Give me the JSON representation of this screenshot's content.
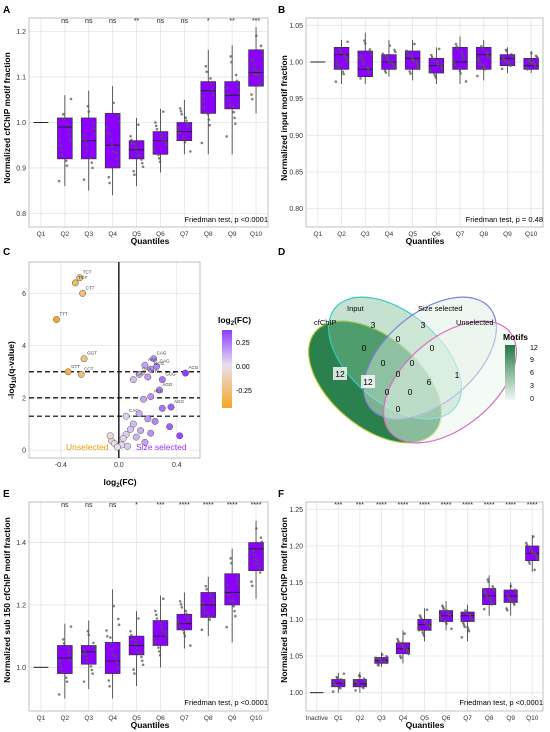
{
  "colors": {
    "box_fill": "#8b00ff",
    "box_stroke": "#333333",
    "point": "#555555",
    "grid": "#e5e5e5",
    "q_neg": "#f5a623",
    "q_pos": "#8b3dff",
    "venn_dark": "#1f7a43",
    "venn_mid": "#7dbf94",
    "venn_light": "#d9ede0",
    "unselected_text": "#e8a000",
    "size_selected_text": "#9b30ff"
  },
  "panels": {
    "A": {
      "letter": "A",
      "ylabel": "Normalized cfChIP motif fraction",
      "xlabel": "Quantiles",
      "test": "Friedman test, p <0.0001",
      "sig": [
        "",
        "ns",
        "ns",
        "ns",
        "**",
        "ns",
        "ns",
        "*",
        "**",
        "***"
      ]
    },
    "B": {
      "letter": "B",
      "ylabel": "Normalized input motif fraction",
      "xlabel": "Quantiles",
      "test": "Friedman test, p = 0.48",
      "sig": []
    },
    "C": {
      "letter": "C",
      "ylabel": "-log10(q-value)",
      "xlabel": "log2(FC)",
      "legend_title": "log2(FC)",
      "legend_ticks": [
        "0.25",
        "0.00",
        "-0.25"
      ],
      "annot_left": "Unselected",
      "annot_right": "Size selected"
    },
    "D": {
      "letter": "D",
      "sets": [
        "cfChIP",
        "Input",
        "Size selected",
        "Unselected"
      ],
      "legend_title": "Motifs",
      "legend_ticks": [
        "12",
        "9",
        "6",
        "3",
        "0"
      ],
      "counts": {
        "cfChIP_only": "12",
        "input_only": "3",
        "size_only": "3",
        "unsel_only": "1",
        "cf_in": "0",
        "in_size": "0",
        "size_unsel": "0",
        "cf_size": "12",
        "in_unsel": "6",
        "cf_in_size": "0",
        "in_size_unsel": "0",
        "cf_in_unsel": "0",
        "cf_size_unsel": "0",
        "cf_unsel": "0",
        "all4": "0"
      }
    },
    "E": {
      "letter": "E",
      "ylabel": "Normalized sub 150 cfChIP motif fraction",
      "xlabel": "Quantiles",
      "test": "Friedman test, p <0.0001",
      "sig": [
        "",
        "ns",
        "ns",
        "ns",
        "*",
        "***",
        "****",
        "****",
        "****",
        "****"
      ]
    },
    "F": {
      "letter": "F",
      "ylabel": "Normalized sub 150 cfChIP motif fraction",
      "xlabel": "Quantiles",
      "test": "Friedman test, p <0.0001",
      "sig": [
        "",
        "***",
        "***",
        "****",
        "****",
        "****",
        "****",
        "****",
        "****",
        "****",
        "****"
      ]
    }
  },
  "chart_data": [
    {
      "id": "A",
      "type": "box",
      "categories": [
        "Q1",
        "Q2",
        "Q3",
        "Q4",
        "Q5",
        "Q6",
        "Q7",
        "Q8",
        "Q9",
        "Q10"
      ],
      "ylim": [
        0.77,
        1.23
      ],
      "yticks": [
        0.8,
        0.9,
        1.0,
        1.1,
        1.2
      ],
      "boxes": [
        {
          "q1": 1.0,
          "median": 1.0,
          "q3": 1.0,
          "lo": 1.0,
          "hi": 1.0
        },
        {
          "q1": 0.92,
          "median": 0.99,
          "q3": 1.01,
          "lo": 0.86,
          "hi": 1.06
        },
        {
          "q1": 0.92,
          "median": 0.96,
          "q3": 1.01,
          "lo": 0.85,
          "hi": 1.07
        },
        {
          "q1": 0.9,
          "median": 0.95,
          "q3": 1.02,
          "lo": 0.84,
          "hi": 1.08
        },
        {
          "q1": 0.92,
          "median": 0.94,
          "q3": 0.96,
          "lo": 0.86,
          "hi": 1.01
        },
        {
          "q1": 0.93,
          "median": 0.96,
          "q3": 0.98,
          "lo": 0.89,
          "hi": 1.03
        },
        {
          "q1": 0.96,
          "median": 0.98,
          "q3": 1.0,
          "lo": 0.93,
          "hi": 1.05
        },
        {
          "q1": 1.02,
          "median": 1.07,
          "q3": 1.09,
          "lo": 0.93,
          "hi": 1.16
        },
        {
          "q1": 1.03,
          "median": 1.06,
          "q3": 1.09,
          "lo": 0.93,
          "hi": 1.17
        },
        {
          "q1": 1.08,
          "median": 1.11,
          "q3": 1.16,
          "lo": 1.02,
          "hi": 1.21
        }
      ]
    },
    {
      "id": "B",
      "type": "box",
      "categories": [
        "Q1",
        "Q2",
        "Q3",
        "Q4",
        "Q5",
        "Q6",
        "Q7",
        "Q8",
        "Q9",
        "Q10"
      ],
      "ylim": [
        0.775,
        1.06
      ],
      "yticks": [
        0.8,
        0.85,
        0.9,
        0.95,
        1.0,
        1.05
      ],
      "boxes": [
        {
          "q1": 1.0,
          "median": 1.0,
          "q3": 1.0,
          "lo": 1.0,
          "hi": 1.0
        },
        {
          "q1": 0.99,
          "median": 1.01,
          "q3": 1.02,
          "lo": 0.97,
          "hi": 1.03
        },
        {
          "q1": 0.98,
          "median": 0.99,
          "q3": 1.015,
          "lo": 0.97,
          "hi": 1.04
        },
        {
          "q1": 0.99,
          "median": 1.0,
          "q3": 1.01,
          "lo": 0.98,
          "hi": 1.03
        },
        {
          "q1": 0.99,
          "median": 1.005,
          "q3": 1.015,
          "lo": 0.975,
          "hi": 1.03
        },
        {
          "q1": 0.985,
          "median": 0.995,
          "q3": 1.005,
          "lo": 0.97,
          "hi": 1.02
        },
        {
          "q1": 0.99,
          "median": 1.0,
          "q3": 1.02,
          "lo": 0.97,
          "hi": 1.035
        },
        {
          "q1": 0.99,
          "median": 1.01,
          "q3": 1.02,
          "lo": 0.975,
          "hi": 1.03
        },
        {
          "q1": 0.995,
          "median": 1.005,
          "q3": 1.01,
          "lo": 0.985,
          "hi": 1.02
        },
        {
          "q1": 0.99,
          "median": 0.995,
          "q3": 1.005,
          "lo": 0.985,
          "hi": 1.015
        }
      ]
    },
    {
      "id": "C",
      "type": "scatter",
      "xlim": [
        -0.62,
        0.56
      ],
      "ylim": [
        -0.3,
        7.2
      ],
      "xticks": [
        -0.4,
        0.0,
        0.4
      ],
      "yticks": [
        0,
        2,
        4,
        6
      ],
      "hlines": [
        1.3,
        2.0,
        3.0
      ],
      "vline": 0,
      "points": [
        {
          "x": -0.27,
          "y": 6.6,
          "label": "TCT"
        },
        {
          "x": -0.3,
          "y": 6.4,
          "label": "TGT"
        },
        {
          "x": -0.25,
          "y": 6.0,
          "label": "CTT"
        },
        {
          "x": -0.43,
          "y": 5.0,
          "label": "TTT"
        },
        {
          "x": -0.24,
          "y": 3.5,
          "label": "GGT"
        },
        {
          "x": -0.35,
          "y": 3.0,
          "label": "GTT"
        },
        {
          "x": -0.26,
          "y": 2.9,
          "label": "CCT"
        },
        {
          "x": 0.24,
          "y": 3.5,
          "label": "CAG"
        },
        {
          "x": 0.18,
          "y": 3.25,
          "label": "AAA"
        },
        {
          "x": 0.26,
          "y": 3.2,
          "label": "GAG"
        },
        {
          "x": 0.22,
          "y": 3.1,
          "label": "GCG"
        },
        {
          "x": 0.46,
          "y": 2.95,
          "label": "ACG"
        },
        {
          "x": 0.14,
          "y": 2.9,
          "label": "GAA"
        },
        {
          "x": 0.2,
          "y": 2.8,
          "label": "GTA"
        },
        {
          "x": 0.1,
          "y": 2.7,
          "label": "CAA"
        },
        {
          "x": 0.3,
          "y": 2.7,
          "label": "GCG"
        },
        {
          "x": 0.28,
          "y": 2.3,
          "label": "AGG"
        },
        {
          "x": 0.22,
          "y": 2.05,
          "label": "ACC"
        },
        {
          "x": 0.36,
          "y": 1.65,
          "label": "AGG"
        },
        {
          "x": 0.05,
          "y": 1.3,
          "label": "CAC"
        },
        {
          "x": 0.17,
          "y": 1.95,
          "label": ""
        },
        {
          "x": 0.3,
          "y": 1.6,
          "label": ""
        },
        {
          "x": 0.14,
          "y": 1.4,
          "label": ""
        },
        {
          "x": 0.2,
          "y": 1.2,
          "label": ""
        },
        {
          "x": 0.25,
          "y": 1.1,
          "label": ""
        },
        {
          "x": 0.1,
          "y": 1.0,
          "label": ""
        },
        {
          "x": 0.08,
          "y": 0.8,
          "label": ""
        },
        {
          "x": 0.15,
          "y": 0.75,
          "label": ""
        },
        {
          "x": 0.22,
          "y": 0.65,
          "label": ""
        },
        {
          "x": 0.05,
          "y": 0.6,
          "label": ""
        },
        {
          "x": 0.12,
          "y": 0.5,
          "label": ""
        },
        {
          "x": 0.03,
          "y": 0.45,
          "label": ""
        },
        {
          "x": -0.05,
          "y": 0.35,
          "label": ""
        },
        {
          "x": -0.03,
          "y": 0.25,
          "label": ""
        },
        {
          "x": 0.02,
          "y": 0.2,
          "label": ""
        },
        {
          "x": 0.06,
          "y": 0.15,
          "label": ""
        },
        {
          "x": -0.01,
          "y": 0.12,
          "label": ""
        },
        {
          "x": 0.35,
          "y": 0.9,
          "label": ""
        },
        {
          "x": 0.42,
          "y": 0.55,
          "label": ""
        },
        {
          "x": -0.06,
          "y": 0.55,
          "label": ""
        },
        {
          "x": 0.18,
          "y": 0.3,
          "label": ""
        }
      ]
    },
    {
      "id": "E",
      "type": "box",
      "categories": [
        "Q1",
        "Q2",
        "Q3",
        "Q4",
        "Q5",
        "Q6",
        "Q7",
        "Q8",
        "Q9",
        "Q10"
      ],
      "ylim": [
        0.86,
        1.53
      ],
      "yticks": [
        1.0,
        1.2,
        1.4
      ],
      "boxes": [
        {
          "q1": 1.0,
          "median": 1.0,
          "q3": 1.0,
          "lo": 1.0,
          "hi": 1.0
        },
        {
          "q1": 0.98,
          "median": 1.03,
          "q3": 1.07,
          "lo": 0.9,
          "hi": 1.14
        },
        {
          "q1": 1.01,
          "median": 1.05,
          "q3": 1.07,
          "lo": 0.93,
          "hi": 1.15
        },
        {
          "q1": 0.98,
          "median": 1.02,
          "q3": 1.08,
          "lo": 0.9,
          "hi": 1.25
        },
        {
          "q1": 1.04,
          "median": 1.07,
          "q3": 1.1,
          "lo": 0.94,
          "hi": 1.18
        },
        {
          "q1": 1.07,
          "median": 1.1,
          "q3": 1.15,
          "lo": 1.0,
          "hi": 1.23
        },
        {
          "q1": 1.12,
          "median": 1.14,
          "q3": 1.17,
          "lo": 1.06,
          "hi": 1.24
        },
        {
          "q1": 1.16,
          "median": 1.2,
          "q3": 1.24,
          "lo": 1.1,
          "hi": 1.29
        },
        {
          "q1": 1.2,
          "median": 1.24,
          "q3": 1.3,
          "lo": 1.08,
          "hi": 1.38
        },
        {
          "q1": 1.31,
          "median": 1.38,
          "q3": 1.4,
          "lo": 1.22,
          "hi": 1.47
        }
      ]
    },
    {
      "id": "F",
      "type": "box",
      "categories": [
        "Inactive",
        "Q1",
        "Q2",
        "Q3",
        "Q4",
        "Q5",
        "Q6",
        "Q7",
        "Q8",
        "Q9",
        "Q10"
      ],
      "ylim": [
        0.975,
        1.26
      ],
      "yticks": [
        1.0,
        1.05,
        1.1,
        1.15,
        1.2,
        1.25
      ],
      "boxes": [
        {
          "q1": 1.0,
          "median": 1.0,
          "q3": 1.0,
          "lo": 1.0,
          "hi": 1.0
        },
        {
          "q1": 1.008,
          "median": 1.013,
          "q3": 1.018,
          "lo": 1.0,
          "hi": 1.027
        },
        {
          "q1": 1.008,
          "median": 1.012,
          "q3": 1.018,
          "lo": 1.0,
          "hi": 1.028
        },
        {
          "q1": 1.04,
          "median": 1.044,
          "q3": 1.048,
          "lo": 1.035,
          "hi": 1.055
        },
        {
          "q1": 1.053,
          "median": 1.06,
          "q3": 1.068,
          "lo": 1.04,
          "hi": 1.085
        },
        {
          "q1": 1.085,
          "median": 1.093,
          "q3": 1.1,
          "lo": 1.07,
          "hi": 1.115
        },
        {
          "q1": 1.097,
          "median": 1.105,
          "q3": 1.112,
          "lo": 1.085,
          "hi": 1.125
        },
        {
          "q1": 1.097,
          "median": 1.105,
          "q3": 1.11,
          "lo": 1.07,
          "hi": 1.12
        },
        {
          "q1": 1.12,
          "median": 1.132,
          "q3": 1.142,
          "lo": 1.105,
          "hi": 1.16
        },
        {
          "q1": 1.123,
          "median": 1.132,
          "q3": 1.14,
          "lo": 1.105,
          "hi": 1.15
        },
        {
          "q1": 1.18,
          "median": 1.19,
          "q3": 1.2,
          "lo": 1.165,
          "hi": 1.215
        }
      ]
    }
  ]
}
